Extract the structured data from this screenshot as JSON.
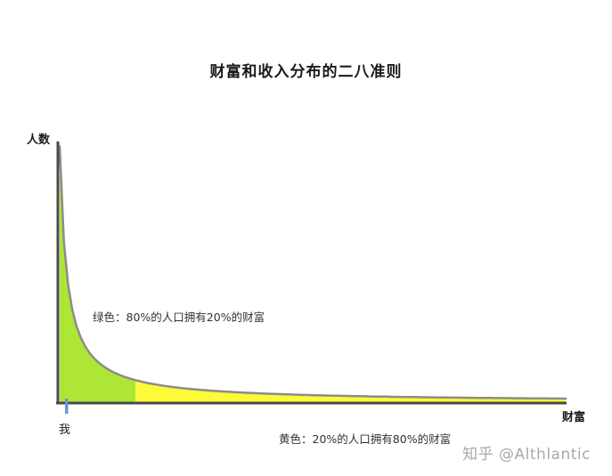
{
  "title": "财富和收入分布的二八准则",
  "chart": {
    "ylabel": "人数",
    "xlabel": "财富",
    "green_label": "绿色：80%的人口拥有20%的财富",
    "yellow_label": "黄色：20%的人口拥有80%的财富",
    "me_label": "我",
    "colors": {
      "green_fill": "#aee636",
      "yellow_fill": "#fbfb3a",
      "axis": "#4a4a4a",
      "curve": "#8c8c8c",
      "me_marker": "#6b96cf",
      "text": "#1a1a1a",
      "watermark": "#a9a9a9"
    }
  },
  "watermark": "知乎 @Althlantic",
  "chart_data": {
    "type": "area",
    "title": "财富和收入分布的二八准则",
    "xlabel": "财富",
    "ylabel": "人数",
    "curve_shape": "hyperbolic (Pareto) decay: number of people falls sharply as wealth increases",
    "axes_numeric": false,
    "green_region_end_fraction": 0.15,
    "regions": [
      {
        "name": "green",
        "color": "#aee636",
        "population_share": "80%",
        "wealth_share": "20%",
        "label": "绿色：80%的人口拥有20%的财富"
      },
      {
        "name": "yellow",
        "color": "#fbfb3a",
        "population_share": "20%",
        "wealth_share": "80%",
        "label": "黄色：20%的人口拥有80%的财富"
      }
    ],
    "annotations": [
      {
        "label": "我",
        "position": "blue tick on x-axis near origin"
      }
    ],
    "legend_position": "inline-annotations",
    "grid": false
  }
}
